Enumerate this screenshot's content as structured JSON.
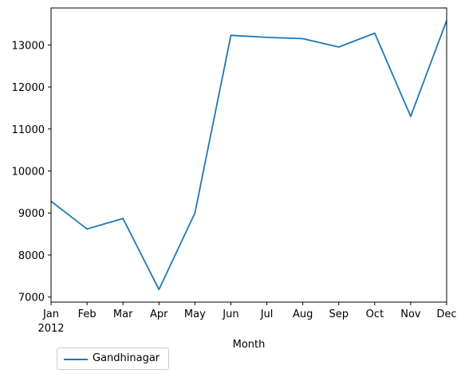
{
  "chart_data": {
    "type": "line",
    "categories": [
      "Jan",
      "Feb",
      "Mar",
      "Apr",
      "May",
      "Jun",
      "Jul",
      "Aug",
      "Sep",
      "Oct",
      "Nov",
      "Dec"
    ],
    "year_label": "2012",
    "series": [
      {
        "name": "Gandhinagar",
        "color": "#1f77b4",
        "values": [
          9280,
          8620,
          8870,
          7180,
          9000,
          13230,
          13180,
          13150,
          12950,
          13280,
          11300,
          13580
        ]
      }
    ],
    "title": "",
    "xlabel": "Month",
    "ylabel": "",
    "ylim": [
      6880,
      13880
    ],
    "yticks": [
      7000,
      8000,
      9000,
      10000,
      11000,
      12000,
      13000
    ],
    "grid": false,
    "legend_position": "bottom-left, outside plot"
  }
}
